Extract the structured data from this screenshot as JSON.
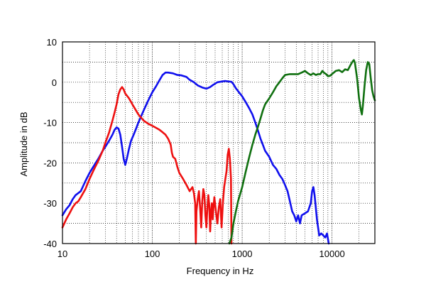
{
  "chart_data": {
    "type": "line",
    "xlabel": "Frequency in Hz",
    "ylabel": "Amplitude in dB",
    "x_scale": "log",
    "xlim": [
      10,
      30000
    ],
    "ylim": [
      -40,
      10
    ],
    "grid": true,
    "x_ticks": [
      10,
      100,
      1000,
      10000
    ],
    "x_tick_labels": [
      "10",
      "100",
      "1000",
      "10000"
    ],
    "y_ticks": [
      10,
      0,
      -10,
      -20,
      -30,
      -40
    ],
    "y_tick_labels": [
      "10",
      "0",
      "-10",
      "-20",
      "-30",
      "-40"
    ],
    "series": [
      {
        "color": "#1010ee",
        "points": [
          [
            10,
            -33
          ],
          [
            11,
            -31.5
          ],
          [
            12,
            -30.5
          ],
          [
            13,
            -29
          ],
          [
            14,
            -28
          ],
          [
            16,
            -27
          ],
          [
            18,
            -24.5
          ],
          [
            20,
            -22.5
          ],
          [
            22,
            -21
          ],
          [
            25,
            -19
          ],
          [
            28,
            -17
          ],
          [
            30,
            -16
          ],
          [
            33,
            -14.5
          ],
          [
            36,
            -13
          ],
          [
            38,
            -11.8
          ],
          [
            40,
            -11.2
          ],
          [
            42,
            -11.5
          ],
          [
            44,
            -13
          ],
          [
            46,
            -16
          ],
          [
            48,
            -19
          ],
          [
            50,
            -20.5
          ],
          [
            52,
            -19
          ],
          [
            55,
            -16.5
          ],
          [
            58,
            -14.5
          ],
          [
            62,
            -13
          ],
          [
            66,
            -11.5
          ],
          [
            70,
            -10
          ],
          [
            80,
            -7
          ],
          [
            90,
            -4.5
          ],
          [
            100,
            -2.5
          ],
          [
            110,
            -1
          ],
          [
            120,
            0.5
          ],
          [
            130,
            1.8
          ],
          [
            140,
            2.4
          ],
          [
            150,
            2.4
          ],
          [
            170,
            2.2
          ],
          [
            190,
            1.8
          ],
          [
            210,
            1.7
          ],
          [
            240,
            1.3
          ],
          [
            260,
            0.6
          ],
          [
            290,
            0
          ],
          [
            320,
            -0.8
          ],
          [
            360,
            -1.3
          ],
          [
            400,
            -1.6
          ],
          [
            440,
            -1.2
          ],
          [
            480,
            -0.6
          ],
          [
            530,
            0
          ],
          [
            600,
            0.2
          ],
          [
            650,
            0.3
          ],
          [
            700,
            0.2
          ],
          [
            760,
            0.1
          ],
          [
            800,
            -0.5
          ],
          [
            850,
            -1.5
          ],
          [
            900,
            -2.2
          ],
          [
            1000,
            -3.5
          ],
          [
            1100,
            -5
          ],
          [
            1200,
            -6.5
          ],
          [
            1300,
            -8
          ],
          [
            1400,
            -10
          ],
          [
            1500,
            -12
          ],
          [
            1600,
            -14
          ],
          [
            1700,
            -15.5
          ],
          [
            1800,
            -17
          ],
          [
            2000,
            -18.5
          ],
          [
            2200,
            -20.5
          ],
          [
            2400,
            -21.5
          ],
          [
            2600,
            -23
          ],
          [
            2800,
            -24
          ],
          [
            3000,
            -25.5
          ],
          [
            3200,
            -27
          ],
          [
            3400,
            -29.5
          ],
          [
            3600,
            -32
          ],
          [
            3800,
            -33
          ],
          [
            4000,
            -34.5
          ],
          [
            4200,
            -33
          ],
          [
            4400,
            -35
          ],
          [
            4600,
            -33
          ],
          [
            5000,
            -32.5
          ],
          [
            5400,
            -32
          ],
          [
            5800,
            -30
          ],
          [
            6000,
            -27
          ],
          [
            6200,
            -26
          ],
          [
            6400,
            -28
          ],
          [
            6800,
            -34
          ],
          [
            7200,
            -38
          ],
          [
            7600,
            -37.5
          ],
          [
            8000,
            -38
          ],
          [
            8400,
            -38.5
          ],
          [
            8800,
            -37.5
          ],
          [
            9200,
            -40
          ]
        ]
      },
      {
        "color": "#ee1010",
        "points": [
          [
            10,
            -36
          ],
          [
            11,
            -34
          ],
          [
            12,
            -32.5
          ],
          [
            13,
            -31
          ],
          [
            14,
            -30
          ],
          [
            15,
            -29.5
          ],
          [
            16,
            -28.5
          ],
          [
            18,
            -26.5
          ],
          [
            20,
            -24
          ],
          [
            22,
            -22
          ],
          [
            25,
            -19.5
          ],
          [
            28,
            -17
          ],
          [
            30,
            -15
          ],
          [
            33,
            -12.5
          ],
          [
            36,
            -9.5
          ],
          [
            38,
            -7.5
          ],
          [
            40,
            -5.5
          ],
          [
            42,
            -3
          ],
          [
            44,
            -1.8
          ],
          [
            46,
            -1.2
          ],
          [
            48,
            -1.8
          ],
          [
            50,
            -2.8
          ],
          [
            55,
            -4
          ],
          [
            60,
            -5.5
          ],
          [
            65,
            -6.8
          ],
          [
            70,
            -8
          ],
          [
            80,
            -9.5
          ],
          [
            90,
            -10.3
          ],
          [
            100,
            -10.8
          ],
          [
            110,
            -11.3
          ],
          [
            120,
            -11.8
          ],
          [
            130,
            -12.4
          ],
          [
            140,
            -13
          ],
          [
            150,
            -14
          ],
          [
            160,
            -15.5
          ],
          [
            165,
            -17.5
          ],
          [
            170,
            -18.5
          ],
          [
            180,
            -19
          ],
          [
            190,
            -21
          ],
          [
            200,
            -22.5
          ],
          [
            220,
            -24
          ],
          [
            240,
            -25.5
          ],
          [
            260,
            -27
          ],
          [
            270,
            -26.5
          ],
          [
            280,
            -26
          ],
          [
            290,
            -27.5
          ],
          [
            300,
            -30
          ],
          [
            305,
            -40
          ],
          [
            310,
            -32
          ],
          [
            320,
            -29
          ],
          [
            330,
            -27
          ],
          [
            340,
            -31
          ],
          [
            350,
            -36
          ],
          [
            360,
            -29.5
          ],
          [
            370,
            -26.5
          ],
          [
            380,
            -28
          ],
          [
            390,
            -33
          ],
          [
            400,
            -36
          ],
          [
            410,
            -31
          ],
          [
            420,
            -28
          ],
          [
            430,
            -30.5
          ],
          [
            440,
            -37
          ],
          [
            450,
            -32
          ],
          [
            460,
            -30
          ],
          [
            470,
            -34
          ],
          [
            480,
            -31
          ],
          [
            490,
            -28.5
          ],
          [
            510,
            -32
          ],
          [
            530,
            -35
          ],
          [
            550,
            -31
          ],
          [
            570,
            -29
          ],
          [
            590,
            -36
          ],
          [
            610,
            -30
          ],
          [
            630,
            -26
          ],
          [
            650,
            -24
          ],
          [
            670,
            -22
          ],
          [
            690,
            -18
          ],
          [
            710,
            -16.5
          ],
          [
            730,
            -19
          ],
          [
            750,
            -24
          ],
          [
            760,
            -40
          ]
        ]
      },
      {
        "color": "#107010",
        "points": [
          [
            720,
            -40
          ],
          [
            760,
            -38.5
          ],
          [
            800,
            -35
          ],
          [
            850,
            -32
          ],
          [
            900,
            -29.5
          ],
          [
            1000,
            -26
          ],
          [
            1100,
            -22
          ],
          [
            1200,
            -18.5
          ],
          [
            1300,
            -15.5
          ],
          [
            1400,
            -13
          ],
          [
            1500,
            -11
          ],
          [
            1600,
            -9
          ],
          [
            1700,
            -7
          ],
          [
            1800,
            -5.5
          ],
          [
            2000,
            -4
          ],
          [
            2200,
            -2.5
          ],
          [
            2400,
            -1
          ],
          [
            2600,
            0
          ],
          [
            2800,
            1
          ],
          [
            3000,
            1.8
          ],
          [
            3400,
            2
          ],
          [
            3800,
            2
          ],
          [
            4200,
            2
          ],
          [
            4600,
            2.4
          ],
          [
            5000,
            2.8
          ],
          [
            5400,
            2.2
          ],
          [
            5800,
            1.8
          ],
          [
            6200,
            2.2
          ],
          [
            6600,
            1.8
          ],
          [
            7000,
            2
          ],
          [
            7400,
            2
          ],
          [
            7800,
            2.8
          ],
          [
            8200,
            2.3
          ],
          [
            8600,
            2
          ],
          [
            9000,
            1.5
          ],
          [
            9500,
            1.6
          ],
          [
            10000,
            2
          ],
          [
            11000,
            2.8
          ],
          [
            12000,
            3
          ],
          [
            13000,
            2.5
          ],
          [
            14000,
            3.2
          ],
          [
            15000,
            3
          ],
          [
            16000,
            4.2
          ],
          [
            17000,
            5.2
          ],
          [
            17500,
            5.5
          ],
          [
            18000,
            4.8
          ],
          [
            19000,
            1
          ],
          [
            20000,
            -4
          ],
          [
            21000,
            -7
          ],
          [
            21500,
            -8
          ],
          [
            22000,
            -6
          ],
          [
            23000,
            -1
          ],
          [
            24000,
            3
          ],
          [
            25000,
            5
          ],
          [
            26000,
            4.5
          ],
          [
            27000,
            1
          ],
          [
            28000,
            -2
          ],
          [
            29000,
            -3.5
          ],
          [
            30000,
            -4.5
          ]
        ]
      }
    ]
  }
}
